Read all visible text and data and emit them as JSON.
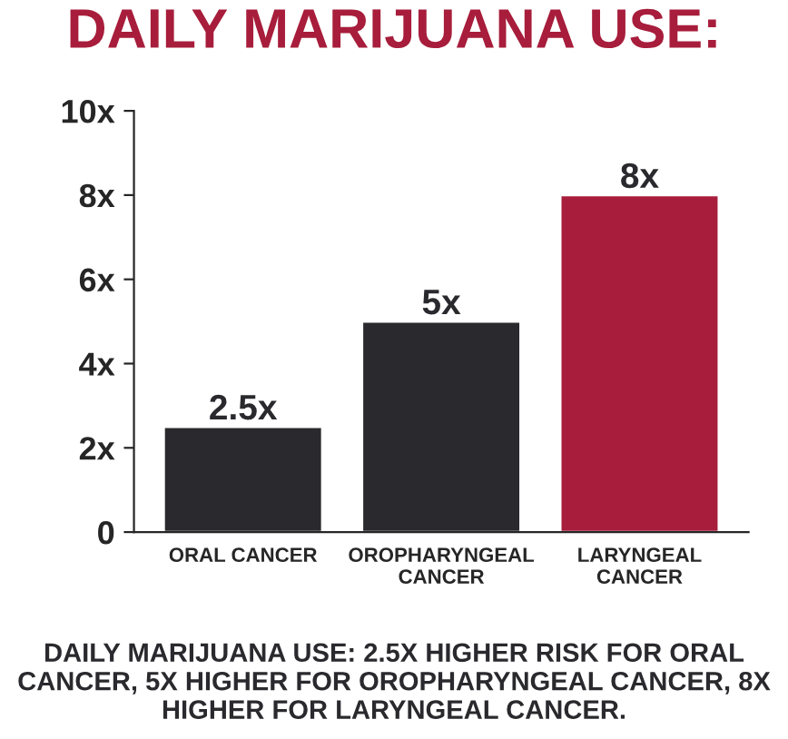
{
  "chart_data": {
    "type": "bar",
    "title": "DAILY MARIJUANA USE:",
    "categories": [
      "ORAL CANCER",
      "OROPHARYNGEAL\nCANCER",
      "LARYNGEAL\nCANCER"
    ],
    "values": [
      2.5,
      5,
      8
    ],
    "colors": [
      "#2a292d",
      "#2a292d",
      "#a71d3b"
    ],
    "value_labels": [
      "2.5x",
      "5x",
      "8x"
    ],
    "ylim": [
      0,
      10
    ],
    "yticks": [
      {
        "value": 0,
        "label": "0"
      },
      {
        "value": 2,
        "label": "2x"
      },
      {
        "value": 4,
        "label": "4x"
      },
      {
        "value": 6,
        "label": "6x"
      },
      {
        "value": 8,
        "label": "8x"
      },
      {
        "value": 10,
        "label": "10x"
      }
    ],
    "grid": false,
    "legend": false,
    "annotations": [
      "DAILY MARIJUANA USE: 2.5X HIGHER RISK FOR ORAL CANCER, 5X HIGHER FOR OROPHARYNGEAL CANCER, 8X HIGHER FOR LARYNGEAL CANCER."
    ]
  }
}
